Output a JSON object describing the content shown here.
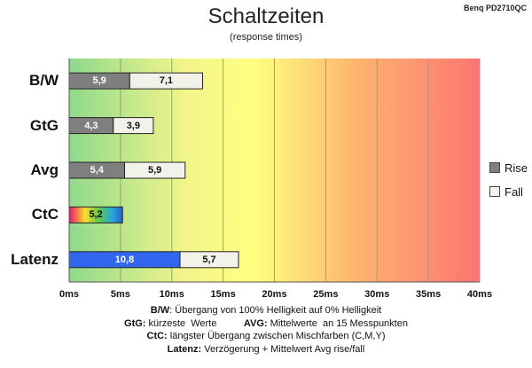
{
  "header": {
    "title": "Schaltzeiten",
    "subtitle": "(response times)",
    "model": "Benq PD2710QC"
  },
  "legend": [
    {
      "label": "Rise",
      "color": "#7f7f7f"
    },
    {
      "label": "Fall",
      "color": "#f2f2ea"
    }
  ],
  "notes": [
    {
      "key": "B/W",
      "text": ":  Übergang von 100% Helligkeit auf 0% Helligkeit"
    },
    {
      "key": "GtG:",
      "text": " kürzeste  Werte          ",
      "key2": "AVG:",
      "text2": " Mittelwerte  an 15 Messpunkten"
    },
    {
      "key": "CtC:",
      "text": " längster Übergang  zwischen Mischfarben  (C,M,Y)"
    },
    {
      "key": "Latenz:",
      "text": " Verzögerung  + Mittelwert  Avg rise/fall"
    }
  ],
  "chart_data": {
    "type": "bar",
    "orientation": "horizontal",
    "stacked": true,
    "title": "Schaltzeiten",
    "subtitle": "(response times)",
    "categories": [
      "B/W",
      "GtG",
      "Avg",
      "CtC",
      "Latenz"
    ],
    "series": [
      {
        "name": "Rise",
        "values": [
          5.9,
          4.3,
          5.4,
          5.2,
          10.8
        ],
        "labels": [
          "5,9",
          "4,3",
          "5,4",
          "5,2",
          "10,8"
        ]
      },
      {
        "name": "Fall",
        "values": [
          7.1,
          3.9,
          5.9,
          null,
          5.7
        ],
        "labels": [
          "7,1",
          "3,9",
          "5,9",
          "",
          "5,7"
        ]
      }
    ],
    "special_fills": {
      "CtC": "rainbow",
      "Latenz": "#3366ee"
    },
    "xlim": [
      0,
      40
    ],
    "xticks": [
      0,
      5,
      10,
      15,
      20,
      25,
      30,
      35,
      40
    ],
    "xtick_labels": [
      "0ms",
      "5ms",
      "10ms",
      "15ms",
      "20ms",
      "25ms",
      "30ms",
      "35ms",
      "40ms"
    ],
    "background": "green-yellow-red gradient",
    "grid": "vertical",
    "legend_position": "right"
  }
}
